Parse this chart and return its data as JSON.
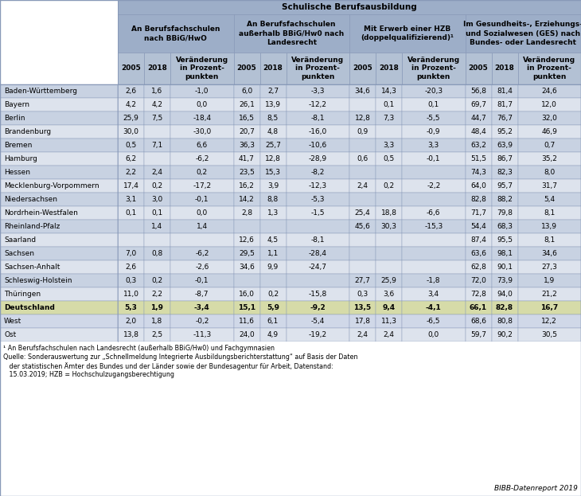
{
  "header_row1": "Schulische Berufsausbildung",
  "header_row2": [
    "An Berufsfachschulen\nnach BBiG/HwO",
    "An Berufsfachschulen\naußerhalb BBiG/Hw0 nach\nLandesrecht",
    "Mit Erwerb einer HZB\n(doppelqualifizierend)¹",
    "Im Gesundheits-, Erziehungs-\nund Sozialwesen (GES) nach\nBundes- oder Landesrecht"
  ],
  "sub_labels": [
    "2005",
    "2018",
    "Veränderung\nin Prozent-\npunkten"
  ],
  "rows": [
    [
      "Baden-Württemberg",
      "2,6",
      "1,6",
      "-1,0",
      "6,0",
      "2,7",
      "-3,3",
      "34,6",
      "14,3",
      "-20,3",
      "56,8",
      "81,4",
      "24,6"
    ],
    [
      "Bayern",
      "4,2",
      "4,2",
      "0,0",
      "26,1",
      "13,9",
      "-12,2",
      "",
      "0,1",
      "0,1",
      "69,7",
      "81,7",
      "12,0"
    ],
    [
      "Berlin",
      "25,9",
      "7,5",
      "-18,4",
      "16,5",
      "8,5",
      "-8,1",
      "12,8",
      "7,3",
      "-5,5",
      "44,7",
      "76,7",
      "32,0"
    ],
    [
      "Brandenburg",
      "30,0",
      "",
      "-30,0",
      "20,7",
      "4,8",
      "-16,0",
      "0,9",
      "",
      "-0,9",
      "48,4",
      "95,2",
      "46,9"
    ],
    [
      "Bremen",
      "0,5",
      "7,1",
      "6,6",
      "36,3",
      "25,7",
      "-10,6",
      "",
      "3,3",
      "3,3",
      "63,2",
      "63,9",
      "0,7"
    ],
    [
      "Hamburg",
      "6,2",
      "",
      "-6,2",
      "41,7",
      "12,8",
      "-28,9",
      "0,6",
      "0,5",
      "-0,1",
      "51,5",
      "86,7",
      "35,2"
    ],
    [
      "Hessen",
      "2,2",
      "2,4",
      "0,2",
      "23,5",
      "15,3",
      "-8,2",
      "",
      "",
      "",
      "74,3",
      "82,3",
      "8,0"
    ],
    [
      "Mecklenburg-Vorpommern",
      "17,4",
      "0,2",
      "-17,2",
      "16,2",
      "3,9",
      "-12,3",
      "2,4",
      "0,2",
      "-2,2",
      "64,0",
      "95,7",
      "31,7"
    ],
    [
      "Niedersachsen",
      "3,1",
      "3,0",
      "-0,1",
      "14,2",
      "8,8",
      "-5,3",
      "",
      "",
      "",
      "82,8",
      "88,2",
      "5,4"
    ],
    [
      "Nordrhein-Westfalen",
      "0,1",
      "0,1",
      "0,0",
      "2,8",
      "1,3",
      "-1,5",
      "25,4",
      "18,8",
      "-6,6",
      "71,7",
      "79,8",
      "8,1"
    ],
    [
      "Rheinland-Pfalz",
      "",
      "1,4",
      "1,4",
      "",
      "",
      "",
      "45,6",
      "30,3",
      "-15,3",
      "54,4",
      "68,3",
      "13,9"
    ],
    [
      "Saarland",
      "",
      "",
      "",
      "12,6",
      "4,5",
      "-8,1",
      "",
      "",
      "",
      "87,4",
      "95,5",
      "8,1"
    ],
    [
      "Sachsen",
      "7,0",
      "0,8",
      "-6,2",
      "29,5",
      "1,1",
      "-28,4",
      "",
      "",
      "",
      "63,6",
      "98,1",
      "34,6"
    ],
    [
      "Sachsen-Anhalt",
      "2,6",
      "",
      "-2,6",
      "34,6",
      "9,9",
      "-24,7",
      "",
      "",
      "",
      "62,8",
      "90,1",
      "27,3"
    ],
    [
      "Schleswig-Holstein",
      "0,3",
      "0,2",
      "-0,1",
      "",
      "",
      "",
      "27,7",
      "25,9",
      "-1,8",
      "72,0",
      "73,9",
      "1,9"
    ],
    [
      "Thüringen",
      "11,0",
      "2,2",
      "-8,7",
      "16,0",
      "0,2",
      "-15,8",
      "0,3",
      "3,6",
      "3,4",
      "72,8",
      "94,0",
      "21,2"
    ],
    [
      "Deutschland",
      "5,3",
      "1,9",
      "-3,4",
      "15,1",
      "5,9",
      "-9,2",
      "13,5",
      "9,4",
      "-4,1",
      "66,1",
      "82,8",
      "16,7"
    ],
    [
      "West",
      "2,0",
      "1,8",
      "-0,2",
      "11,6",
      "6,1",
      "-5,4",
      "17,8",
      "11,3",
      "-6,5",
      "68,6",
      "80,8",
      "12,2"
    ],
    [
      "Ost",
      "13,8",
      "2,5",
      "-11,3",
      "24,0",
      "4,9",
      "-19,2",
      "2,4",
      "2,4",
      "0,0",
      "59,7",
      "90,2",
      "30,5"
    ]
  ],
  "footer_line1": "¹ An Berufsfachschulen nach Landesrecht (außerhalb BBiG/Hw0) und Fachgymnasien",
  "footer_line2": "Quelle: Sonderauswertung zur „Schnellmeldung Integrierte Ausbildungsberichterstattung“ auf Basis der Daten",
  "footer_line3": "   der statistischen Ämter des Bundes und der Länder sowie der Bundesagentur für Arbeit, Datenstand:",
  "footer_line4": "   15.03.2019; HZB = Hochschulzugangsberechtigung",
  "bibb_label": "BIBB-Datenreport 2019",
  "c_white": "#ffffff",
  "c_header_blue": "#9daec8",
  "c_header_blue2": "#b3c1d4",
  "c_row_blue_dark": "#c8d2e2",
  "c_row_blue_light": "#dde3ed",
  "c_deutschland": "#d6dba8",
  "c_west_ost": "#d0d8e8",
  "c_border": "#8899b8",
  "c_footer_bg": "#ffffff"
}
